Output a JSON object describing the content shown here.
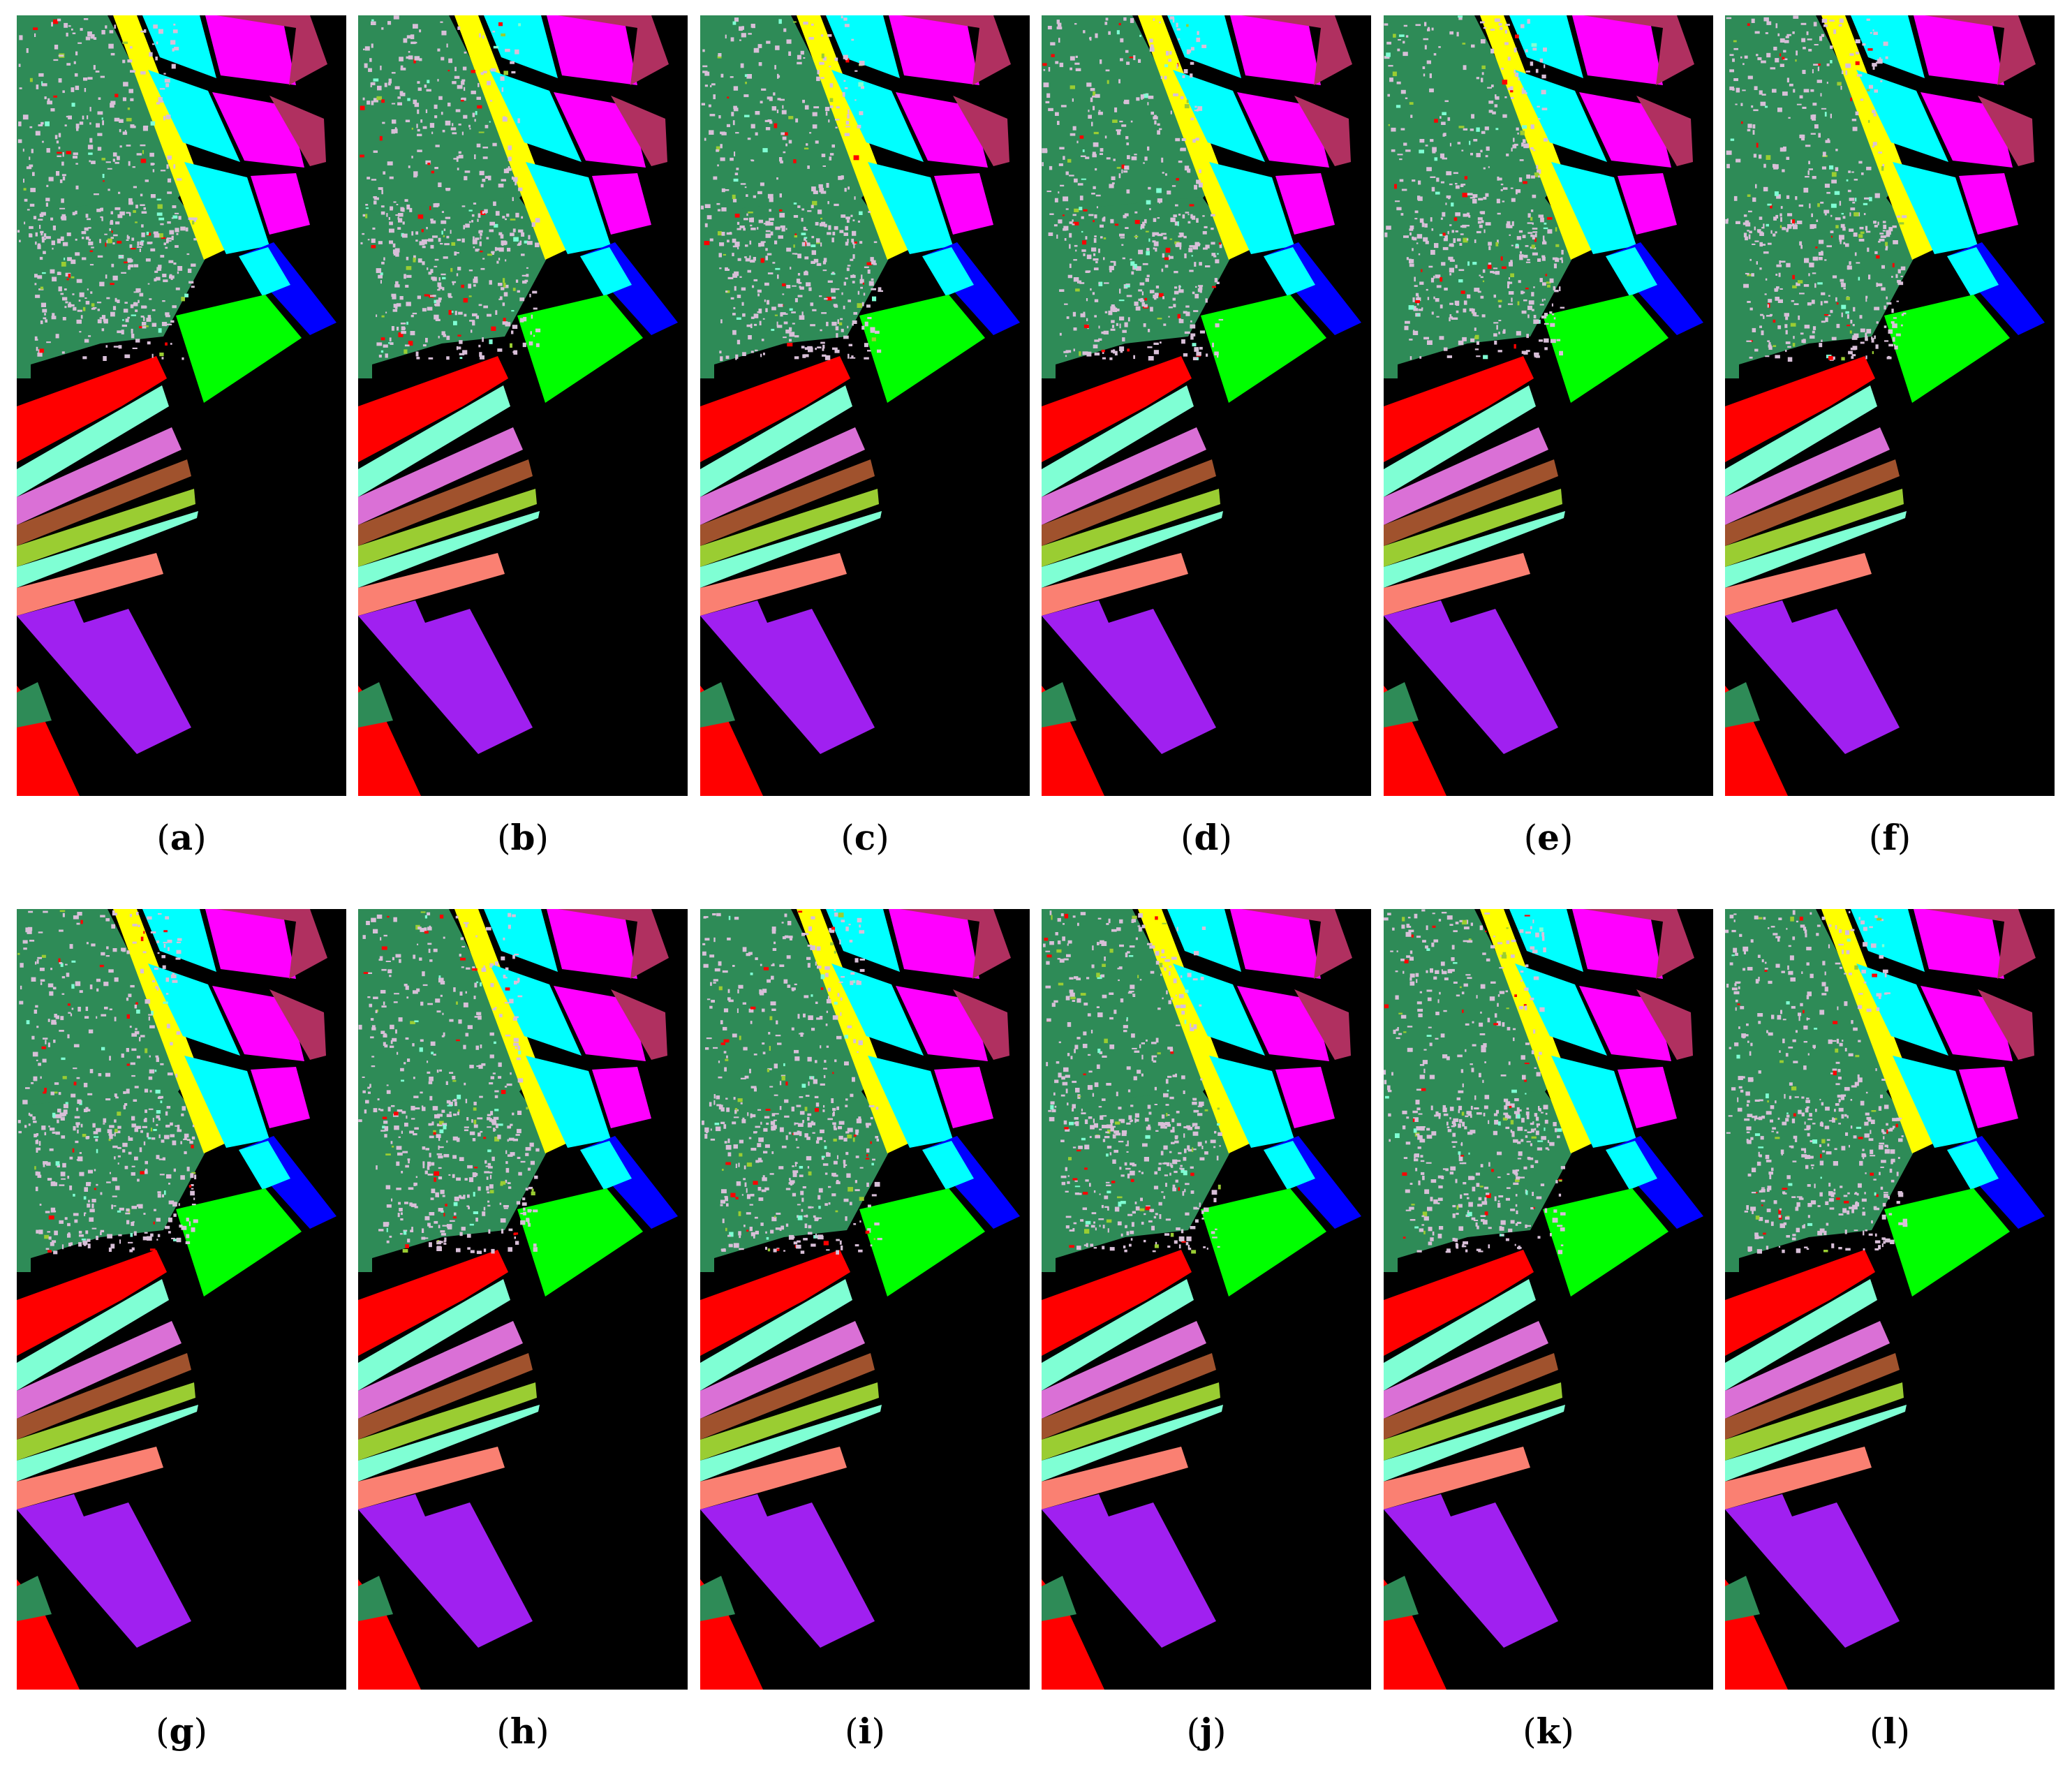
{
  "figure": {
    "panels": [
      {
        "id": "a",
        "caption_open": "(",
        "caption_letter": "a",
        "caption_close": ")"
      },
      {
        "id": "b",
        "caption_open": "(",
        "caption_letter": "b",
        "caption_close": ")"
      },
      {
        "id": "c",
        "caption_open": "(",
        "caption_letter": "c",
        "caption_close": ")"
      },
      {
        "id": "d",
        "caption_open": "(",
        "caption_letter": "d",
        "caption_close": ")"
      },
      {
        "id": "e",
        "caption_open": "(",
        "caption_letter": "e",
        "caption_close": ")"
      },
      {
        "id": "f",
        "caption_open": "(",
        "caption_letter": "f",
        "caption_close": ")"
      },
      {
        "id": "g",
        "caption_open": "(",
        "caption_letter": "g",
        "caption_close": ")"
      },
      {
        "id": "h",
        "caption_open": "(",
        "caption_letter": "h",
        "caption_close": ")"
      },
      {
        "id": "i",
        "caption_open": "(",
        "caption_letter": "i",
        "caption_close": ")"
      },
      {
        "id": "j",
        "caption_open": "(",
        "caption_letter": "j",
        "caption_close": ")"
      },
      {
        "id": "k",
        "caption_open": "(",
        "caption_letter": "k",
        "caption_close": ")"
      },
      {
        "id": "l",
        "caption_open": "(",
        "caption_letter": "l",
        "caption_close": ")"
      }
    ],
    "colors": {
      "background": "#000000",
      "grapes": "#2e8b57",
      "grapes_noise": "#d8bfd8",
      "red_field": "#ff0000",
      "yellow": "#ffff00",
      "cyan": "#00ffff",
      "magenta": "#ff00ff",
      "maroon": "#b03060",
      "blue": "#0000ff",
      "green": "#00ff00",
      "aquamarine": "#7fffd4",
      "orchid": "#da70d6",
      "sienna": "#a0522d",
      "yellowgreen": "#9acd32",
      "salmon": "#fa8072",
      "purple": "#a020f0"
    }
  }
}
